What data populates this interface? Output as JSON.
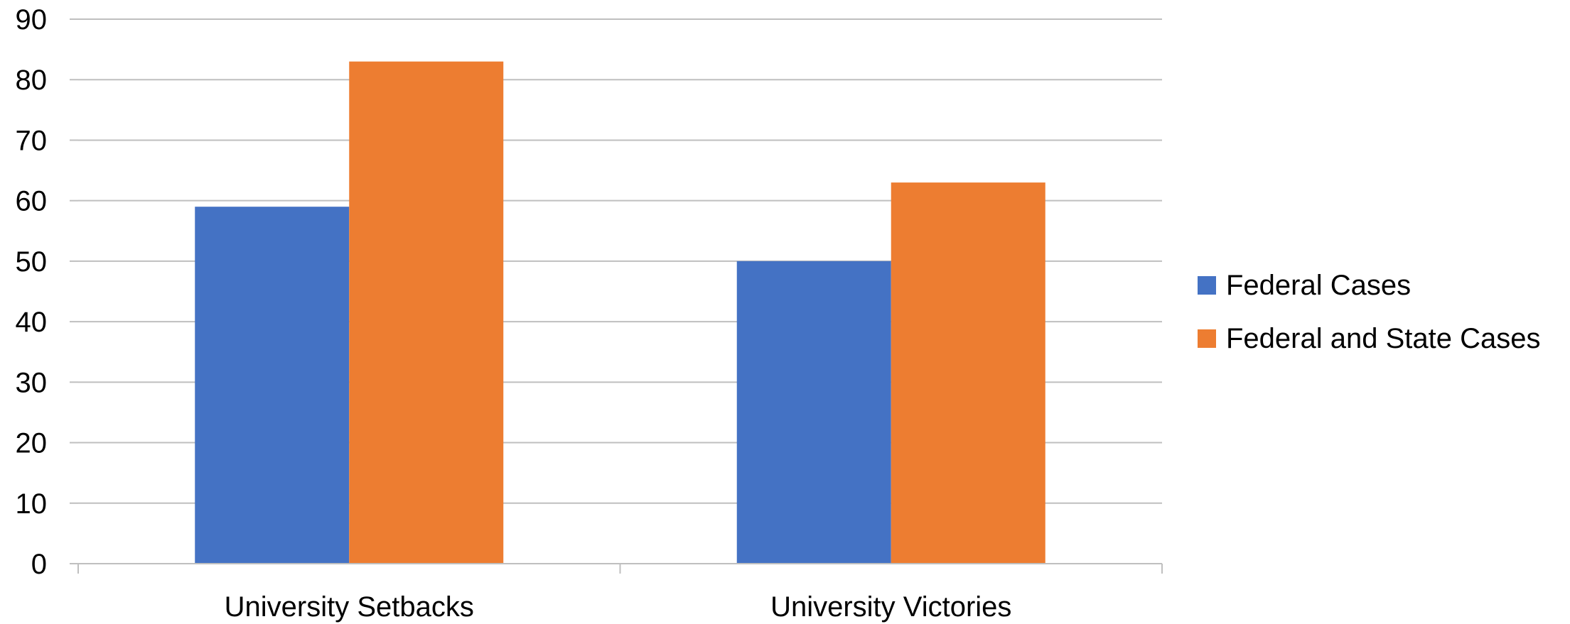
{
  "chart_data": {
    "type": "bar",
    "categories": [
      "University Setbacks",
      "University Victories"
    ],
    "series": [
      {
        "name": "Federal Cases",
        "values": [
          59,
          50
        ],
        "color": "#4472C4"
      },
      {
        "name": "Federal and State Cases",
        "values": [
          83,
          63
        ],
        "color": "#ED7D31"
      }
    ],
    "ylim": [
      0,
      90
    ],
    "yticks": [
      0,
      10,
      20,
      30,
      40,
      50,
      60,
      70,
      80,
      90
    ],
    "grid": true,
    "legend_position": "right",
    "gridline_color": "#BFBFBF",
    "axis_color": "#BFBFBF"
  }
}
